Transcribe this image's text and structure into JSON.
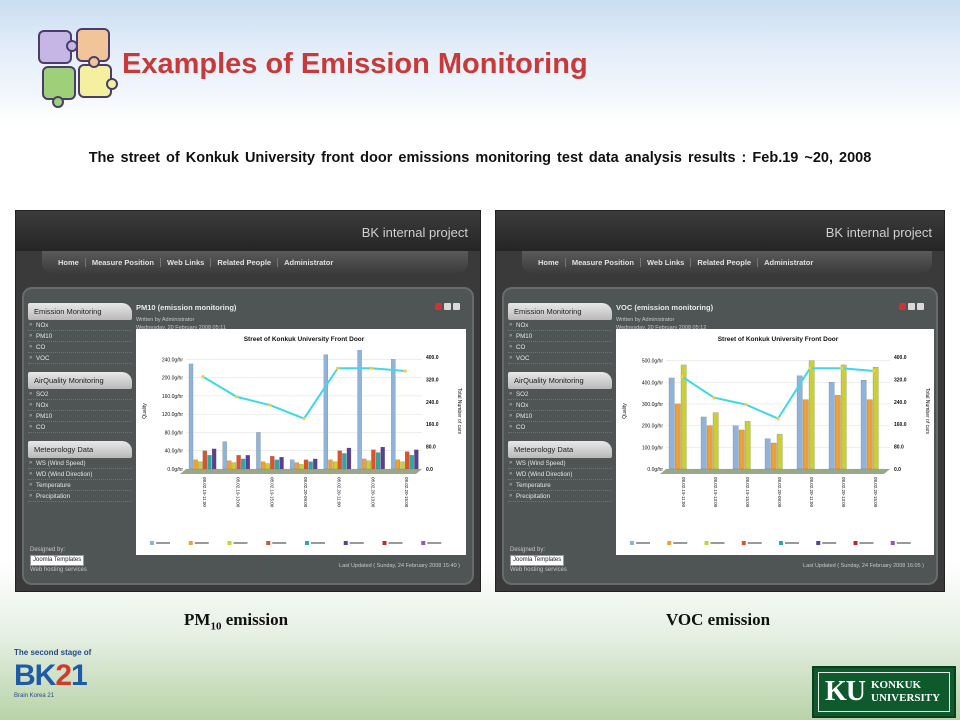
{
  "slide": {
    "title": "Examples of Emission Monitoring",
    "subtitle": "The street of Konkuk University front door emissions monitoring test data analysis results : Feb.19 ~20, 2008",
    "caption_left_prefix": "PM",
    "caption_left_sub": "10",
    "caption_left_suffix": " emission",
    "caption_right": "VOC emission"
  },
  "colors": {
    "title": "#c83a3a",
    "chart_line": "#3fd8e8",
    "series": [
      "#8fb4dc",
      "#f0a030",
      "#c9d030",
      "#e0502a",
      "#2fa8a0",
      "#5a3f9a",
      "#c02828",
      "#8a5abf"
    ]
  },
  "screens": [
    {
      "header_label": "BK internal project",
      "nav": [
        "Home",
        "Measure Position",
        "Web Links",
        "Related People",
        "Administrator"
      ],
      "sidebar": [
        {
          "heading": "Emission Monitoring",
          "items": [
            "NOx",
            "PM10",
            "CO",
            "VOC"
          ]
        },
        {
          "heading": "AirQuality Monitoring",
          "items": [
            "SO2",
            "NOx",
            "PM10",
            "CO"
          ]
        },
        {
          "heading": "Meteorology Data",
          "items": [
            "WS (Wind Speed)",
            "WD (Wind Direction)",
            "Temperature",
            "Precipitation"
          ]
        }
      ],
      "footer_designed": "Designed by:",
      "footer_joomla": "Joomla Templates",
      "footer_hosting": "Web hosting services",
      "content_title": "PM10 (emission monitoring)",
      "content_author": "Written by Administrator",
      "content_date": "Wednesday, 20 February 2008 05:11",
      "last_updated": "Last Updated ( Sunday, 24 February 2008 15:40 )"
    },
    {
      "header_label": "BK internal project",
      "nav": [
        "Home",
        "Measure Position",
        "Web Links",
        "Related People",
        "Administrator"
      ],
      "sidebar": [
        {
          "heading": "Emission Monitoring",
          "items": [
            "NOx",
            "PM10",
            "CO",
            "VOC"
          ]
        },
        {
          "heading": "AirQuality Monitoring",
          "items": [
            "SO2",
            "NOx",
            "PM10",
            "CO"
          ]
        },
        {
          "heading": "Meteorology Data",
          "items": [
            "WS (Wind Speed)",
            "WD (Wind Direction)",
            "Temperature",
            "Precipitation"
          ]
        }
      ],
      "footer_designed": "Designed by:",
      "footer_joomla": "Joomla Templates",
      "footer_hosting": "Web hosting services",
      "content_title": "VOC (emission monitoring)",
      "content_author": "Written by Administrator",
      "content_date": "Wednesday, 20 February 2008 05:12",
      "last_updated": "Last Updated ( Sunday, 24 February 2008 16:05 )"
    }
  ],
  "chart_data": [
    {
      "type": "bar",
      "title": "Street of Konkuk University Front Door",
      "ylabel": "Quality",
      "y2label": "Total Number of cars",
      "yticks": [
        "0.0g/hr",
        "40.0g/hr",
        "80.0g/hr",
        "120.0g/hr",
        "160.0g/hr",
        "200.0g/hr",
        "240.0g/hr"
      ],
      "y2ticks": [
        "0.0",
        "80.0",
        "160.0",
        "240.0",
        "320.0",
        "400.0"
      ],
      "ylim": [
        0,
        280
      ],
      "y2lim": [
        0,
        400
      ],
      "categories": [
        "08.02.19-11:00",
        "08.02.19-13:00",
        "08.02.19-15:00",
        "08.02.20-09:00",
        "08.02.20-11:00",
        "08.02.20-13:00",
        "08.02.20-15:00"
      ],
      "series": [
        {
          "values": [
            230,
            60,
            80,
            20,
            250,
            260,
            240
          ]
        },
        {
          "values": [
            20,
            18,
            16,
            14,
            20,
            22,
            20
          ]
        },
        {
          "values": [
            16,
            14,
            12,
            10,
            16,
            18,
            16
          ]
        },
        {
          "values": [
            40,
            30,
            28,
            20,
            40,
            42,
            38
          ]
        },
        {
          "values": [
            30,
            22,
            20,
            16,
            34,
            36,
            30
          ]
        },
        {
          "values": [
            44,
            30,
            26,
            22,
            46,
            48,
            42
          ]
        }
      ],
      "line": {
        "values": [
          330,
          258,
          228,
          180,
          360,
          360,
          350
        ]
      },
      "legend_count": 8
    },
    {
      "type": "bar",
      "title": "Street of Konkuk University Front Door",
      "ylabel": "Quality",
      "y2label": "Total Number of cars",
      "yticks": [
        "0.0g/hr",
        "100.0g/hr",
        "200.0g/hr",
        "300.0g/hr",
        "400.0g/hr",
        "500.0g/hr"
      ],
      "y2ticks": [
        "0.0",
        "80.0",
        "160.0",
        "240.0",
        "320.0",
        "400.0"
      ],
      "ylim": [
        0,
        580
      ],
      "y2lim": [
        0,
        400
      ],
      "categories": [
        "08.02.19-11:00",
        "08.02.19-13:00",
        "08.02.19-15:00",
        "08.02.20-09:00",
        "08.02.20-11:00",
        "08.02.20-13:00",
        "08.02.20-15:00"
      ],
      "series": [
        {
          "values": [
            420,
            240,
            200,
            140,
            430,
            400,
            410
          ]
        },
        {
          "values": [
            300,
            200,
            180,
            120,
            320,
            340,
            320
          ]
        },
        {
          "values": [
            480,
            260,
            220,
            160,
            500,
            480,
            470
          ]
        }
      ],
      "line": {
        "values": [
          330,
          255,
          230,
          180,
          360,
          360,
          350
        ]
      },
      "legend_count": 8
    }
  ]
}
